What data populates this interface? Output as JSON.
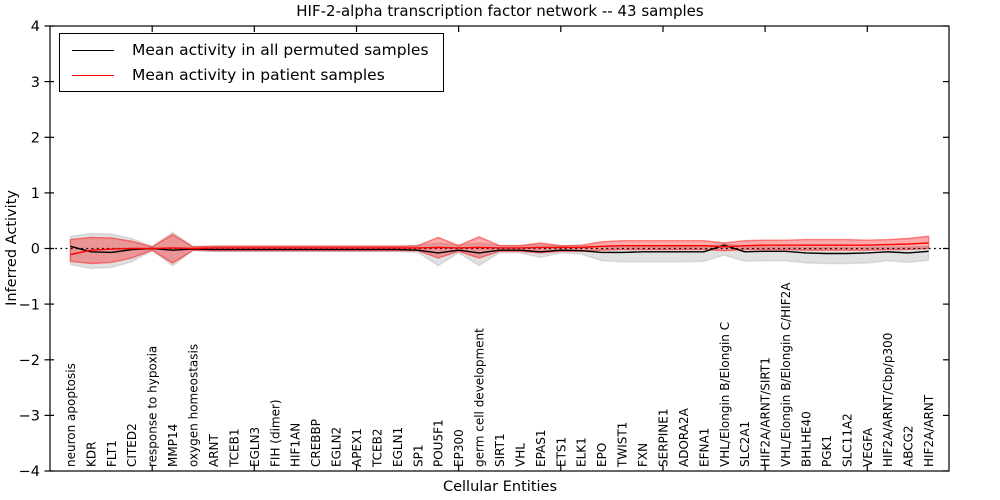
{
  "chart_data": {
    "type": "line",
    "title": "HIF-2-alpha transcription factor network -- 43 samples",
    "xlabel": "Cellular Entities",
    "ylabel": "Inferred Activity",
    "ylim": [
      -4,
      4
    ],
    "yticks": [
      -4,
      -3,
      -2,
      -1,
      0,
      1,
      2,
      3,
      4
    ],
    "xtick_positions": [
      5,
      10,
      15,
      20,
      25,
      30,
      35,
      40
    ],
    "grid": false,
    "legend_position": "upper left",
    "zero_line": 0,
    "categories": [
      "neuron apoptosis",
      "KDR",
      "FLT1",
      "CITED2",
      "response to hypoxia",
      "MMP14",
      "oxygen homeostasis",
      "ARNT",
      "TCEB1",
      "EGLN3",
      "FIH (dimer)",
      "HIF1AN",
      "CREBBP",
      "EGLN2",
      "APEX1",
      "TCEB2",
      "EGLN1",
      "SP1",
      "POU5F1",
      "EP300",
      "germ cell development",
      "SIRT1",
      "VHL",
      "EPAS1",
      "ETS1",
      "ELK1",
      "EPO",
      "TWIST1",
      "FXN",
      "SERPINE1",
      "ADORA2A",
      "EFNA1",
      "VHL/Elongin B/Elongin C",
      "SLC2A1",
      "HIF2A/ARNT/SIRT1",
      "VHL/Elongin B/Elongin C/HIF2A",
      "BHLHE40",
      "PGK1",
      "SLC11A2",
      "VEGFA",
      "HIF2A/ARNT/Cbp/p300",
      "ABCG2",
      "HIF2A/ARNT"
    ],
    "series": [
      {
        "name": "Mean activity in all permuted samples",
        "color": "#000000",
        "values": [
          0.04,
          -0.06,
          -0.07,
          -0.02,
          0.0,
          -0.03,
          -0.01,
          -0.02,
          -0.02,
          -0.02,
          -0.02,
          -0.02,
          -0.02,
          -0.02,
          -0.02,
          -0.02,
          -0.02,
          -0.03,
          -0.08,
          -0.03,
          -0.08,
          -0.03,
          -0.03,
          -0.06,
          -0.03,
          -0.04,
          -0.07,
          -0.07,
          -0.06,
          -0.06,
          -0.06,
          -0.06,
          0.06,
          -0.06,
          -0.05,
          -0.05,
          -0.08,
          -0.09,
          -0.09,
          -0.08,
          -0.06,
          -0.08,
          -0.05
        ]
      },
      {
        "name": "Mean activity in patient samples",
        "color": "#ff0000",
        "values": [
          -0.11,
          -0.03,
          -0.01,
          0.0,
          0.0,
          0.01,
          0.0,
          0.01,
          0.01,
          0.01,
          0.01,
          0.01,
          0.01,
          0.01,
          0.01,
          0.01,
          0.01,
          0.01,
          0.02,
          0.01,
          0.02,
          0.01,
          0.01,
          0.02,
          0.02,
          0.02,
          0.04,
          0.05,
          0.05,
          0.05,
          0.05,
          0.05,
          0.03,
          0.05,
          0.06,
          0.06,
          0.06,
          0.06,
          0.06,
          0.06,
          0.07,
          0.08,
          0.1
        ]
      }
    ],
    "bands": [
      {
        "name": "permuted samples range",
        "fill": "rgba(0,0,0,0.12)",
        "edge": "rgba(0,0,0,0.10)",
        "upper": [
          0.22,
          0.27,
          0.26,
          0.18,
          0.04,
          0.29,
          0.04,
          0.05,
          0.05,
          0.05,
          0.05,
          0.05,
          0.05,
          0.05,
          0.05,
          0.05,
          0.05,
          0.06,
          0.1,
          0.06,
          0.1,
          0.06,
          0.06,
          0.07,
          0.05,
          0.05,
          0.04,
          0.03,
          0.03,
          0.03,
          0.03,
          0.03,
          0.09,
          0.03,
          0.03,
          0.03,
          0.02,
          0.02,
          0.02,
          0.02,
          0.03,
          0.03,
          0.04
        ],
        "lower": [
          -0.29,
          -0.36,
          -0.34,
          -0.24,
          -0.04,
          -0.31,
          -0.04,
          -0.06,
          -0.06,
          -0.06,
          -0.06,
          -0.06,
          -0.06,
          -0.06,
          -0.06,
          -0.06,
          -0.06,
          -0.07,
          -0.31,
          -0.08,
          -0.31,
          -0.08,
          -0.08,
          -0.16,
          -0.08,
          -0.1,
          -0.22,
          -0.24,
          -0.24,
          -0.24,
          -0.24,
          -0.23,
          -0.12,
          -0.23,
          -0.22,
          -0.22,
          -0.26,
          -0.27,
          -0.27,
          -0.26,
          -0.22,
          -0.25,
          -0.21
        ]
      },
      {
        "name": "patient samples range",
        "fill": "rgba(255,0,0,0.33)",
        "edge": "rgba(255,0,0,0.45)",
        "upper": [
          0.16,
          0.2,
          0.19,
          0.13,
          0.03,
          0.25,
          0.03,
          0.04,
          0.04,
          0.04,
          0.04,
          0.04,
          0.04,
          0.04,
          0.04,
          0.04,
          0.04,
          0.05,
          0.2,
          0.05,
          0.21,
          0.05,
          0.05,
          0.1,
          0.05,
          0.06,
          0.12,
          0.14,
          0.14,
          0.14,
          0.14,
          0.14,
          0.1,
          0.14,
          0.15,
          0.15,
          0.16,
          0.16,
          0.16,
          0.15,
          0.16,
          0.18,
          0.22
        ],
        "lower": [
          -0.23,
          -0.27,
          -0.25,
          -0.17,
          -0.03,
          -0.26,
          -0.03,
          -0.04,
          -0.04,
          -0.04,
          -0.04,
          -0.04,
          -0.04,
          -0.04,
          -0.04,
          -0.04,
          -0.04,
          -0.04,
          -0.17,
          -0.05,
          -0.17,
          -0.05,
          -0.05,
          -0.08,
          -0.05,
          -0.05,
          -0.03,
          -0.02,
          -0.02,
          -0.02,
          -0.02,
          -0.02,
          -0.04,
          -0.02,
          -0.02,
          -0.02,
          -0.03,
          -0.03,
          -0.03,
          -0.03,
          -0.02,
          -0.02,
          0.0
        ]
      }
    ]
  },
  "legend": {
    "entries": [
      {
        "label": "Mean activity in all permuted samples",
        "color": "#000000"
      },
      {
        "label": "Mean activity in patient samples",
        "color": "#ff0000"
      }
    ]
  },
  "colors": {
    "frame": "#000000",
    "background": "#ffffff",
    "zero_line": "#000000"
  }
}
